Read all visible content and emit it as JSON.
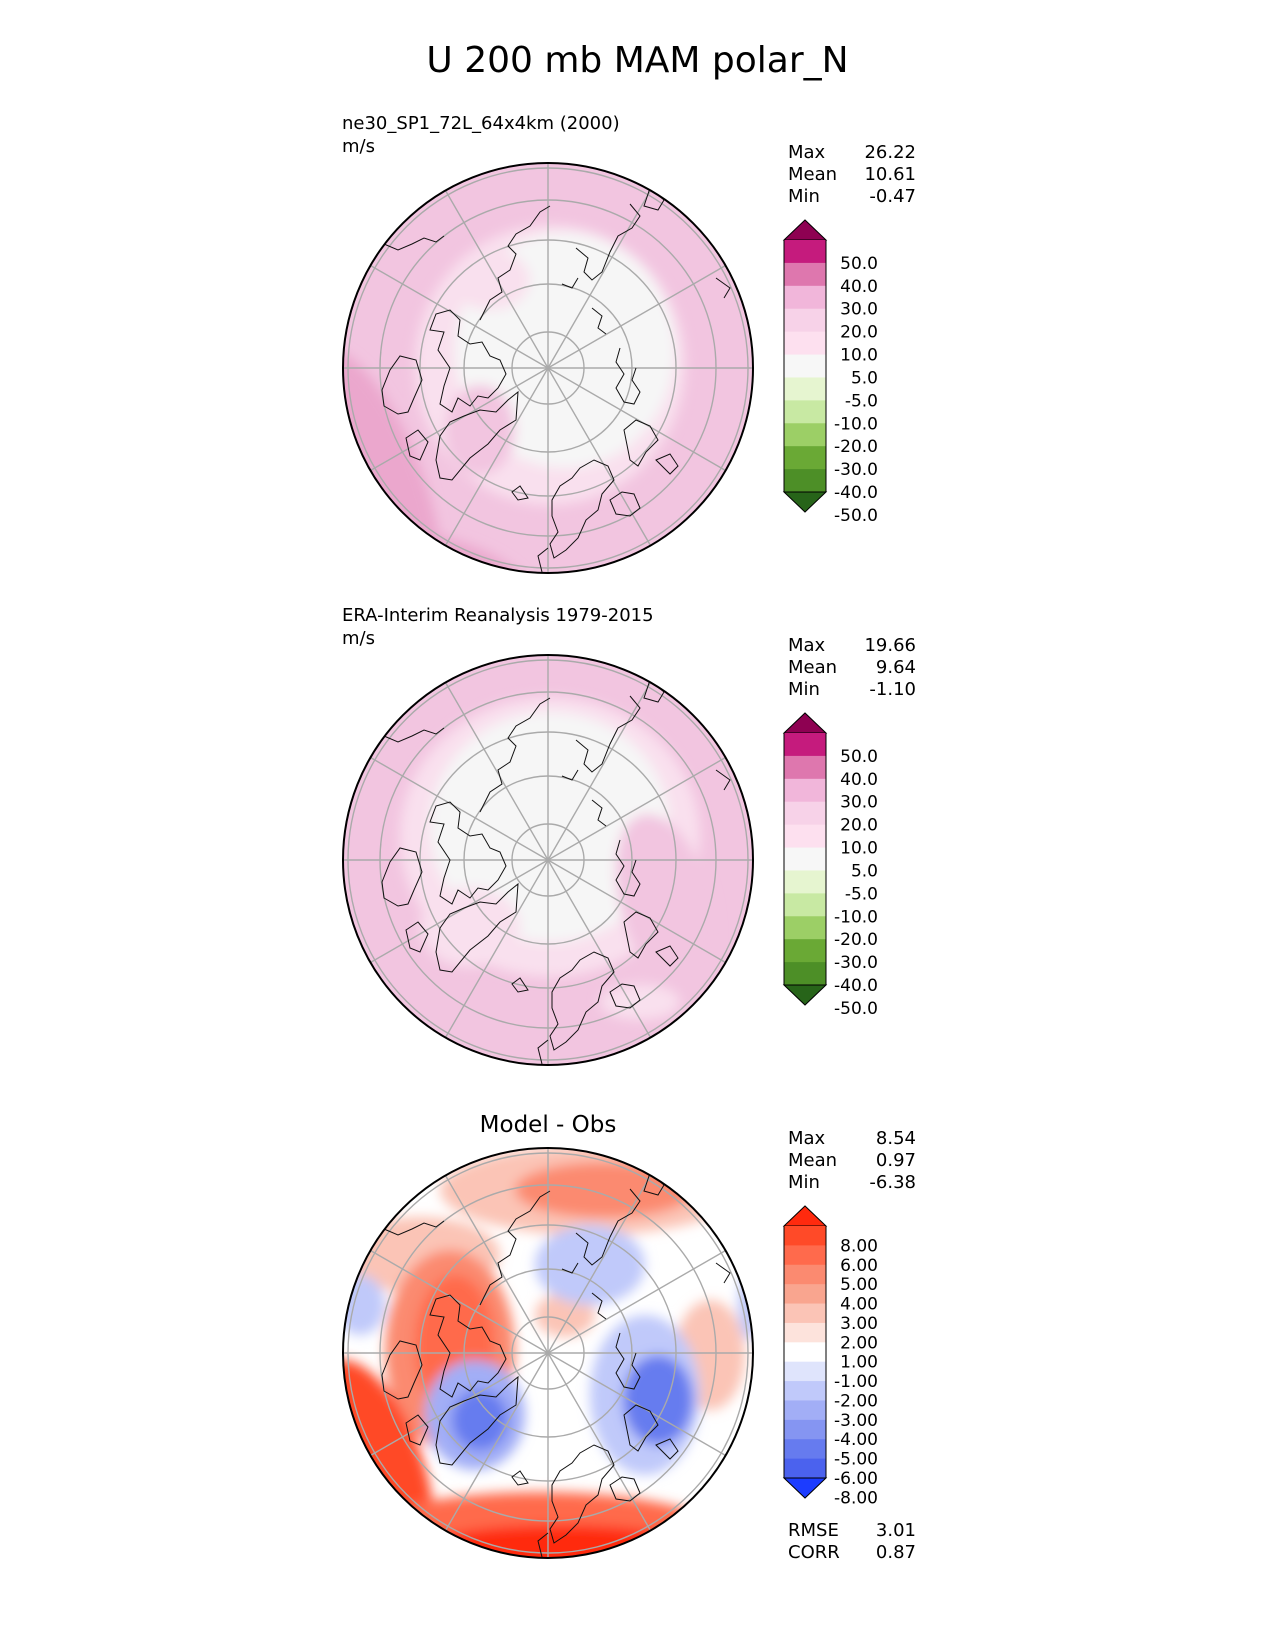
{
  "title": "U 200 mb MAM polar_N",
  "panels": [
    {
      "id": "test",
      "title": "ne30_SP1_72L_64x4km (2000)",
      "units": "m/s",
      "stats": [
        {
          "label": "Max",
          "value": "26.22"
        },
        {
          "label": "Mean",
          "value": "10.61"
        },
        {
          "label": "Min",
          "value": "-0.47"
        }
      ]
    },
    {
      "id": "reference",
      "title": "ERA-Interim Reanalysis 1979-2015",
      "units": "m/s",
      "stats": [
        {
          "label": "Max",
          "value": "19.66"
        },
        {
          "label": "Mean",
          "value": "9.64"
        },
        {
          "label": "Min",
          "value": "-1.10"
        }
      ]
    },
    {
      "id": "diff",
      "title": "Model - Obs",
      "units": "",
      "stats": [
        {
          "label": "Max",
          "value": "8.54"
        },
        {
          "label": "Mean",
          "value": "0.97"
        },
        {
          "label": "Min",
          "value": "-6.38"
        }
      ],
      "footer_stats": [
        {
          "label": "RMSE",
          "value": "3.01"
        },
        {
          "label": "CORR",
          "value": "0.87"
        }
      ]
    }
  ],
  "chart_data": [
    {
      "type": "heatmap",
      "projection": "north polar stereographic",
      "variable": "U 200 mb",
      "title": "ne30_SP1_72L_64x4km (2000)",
      "units": "m/s",
      "colorbar_levels": [
        "50.0",
        "40.0",
        "30.0",
        "20.0",
        "10.0",
        "5.0",
        "-5.0",
        "-10.0",
        "-20.0",
        "-30.0",
        "-40.0",
        "-50.0"
      ],
      "colorbar_colors": [
        "#8e0152",
        "#c51b7d",
        "#de77ae",
        "#f1b6da",
        "#f7d2e8",
        "#fde0ef",
        "#f7f7f7",
        "#e6f5d0",
        "#c8e9a3",
        "#9ccf66",
        "#6aa935",
        "#4d8f27",
        "#276419"
      ],
      "max": 26.22,
      "mean": 10.61,
      "min": -0.47
    },
    {
      "type": "heatmap",
      "projection": "north polar stereographic",
      "variable": "U 200 mb",
      "title": "ERA-Interim Reanalysis 1979-2015",
      "units": "m/s",
      "colorbar_levels": [
        "50.0",
        "40.0",
        "30.0",
        "20.0",
        "10.0",
        "5.0",
        "-5.0",
        "-10.0",
        "-20.0",
        "-30.0",
        "-40.0",
        "-50.0"
      ],
      "colorbar_colors": [
        "#8e0152",
        "#c51b7d",
        "#de77ae",
        "#f1b6da",
        "#f7d2e8",
        "#fde0ef",
        "#f7f7f7",
        "#e6f5d0",
        "#c8e9a3",
        "#9ccf66",
        "#6aa935",
        "#4d8f27",
        "#276419"
      ],
      "max": 19.66,
      "mean": 9.64,
      "min": -1.1
    },
    {
      "type": "heatmap",
      "projection": "north polar stereographic",
      "title": "Model - Obs",
      "colorbar_levels": [
        "8.00",
        "6.00",
        "5.00",
        "4.00",
        "3.00",
        "2.00",
        "1.00",
        "-1.00",
        "-2.00",
        "-3.00",
        "-4.00",
        "-5.00",
        "-6.00",
        "-8.00"
      ],
      "colorbar_colors": [
        "#ff2a0e",
        "#ff4a28",
        "#ff6a4c",
        "#fb8a70",
        "#f9a58f",
        "#fbc4b6",
        "#fde3dc",
        "#ffffff",
        "#dfe4fc",
        "#c0c9fa",
        "#a2aef6",
        "#8595f2",
        "#667bef",
        "#4b62ee",
        "#1c3cff"
      ],
      "max": 8.54,
      "mean": 0.97,
      "min": -6.38,
      "rmse": 3.01,
      "corr": 0.87
    }
  ]
}
